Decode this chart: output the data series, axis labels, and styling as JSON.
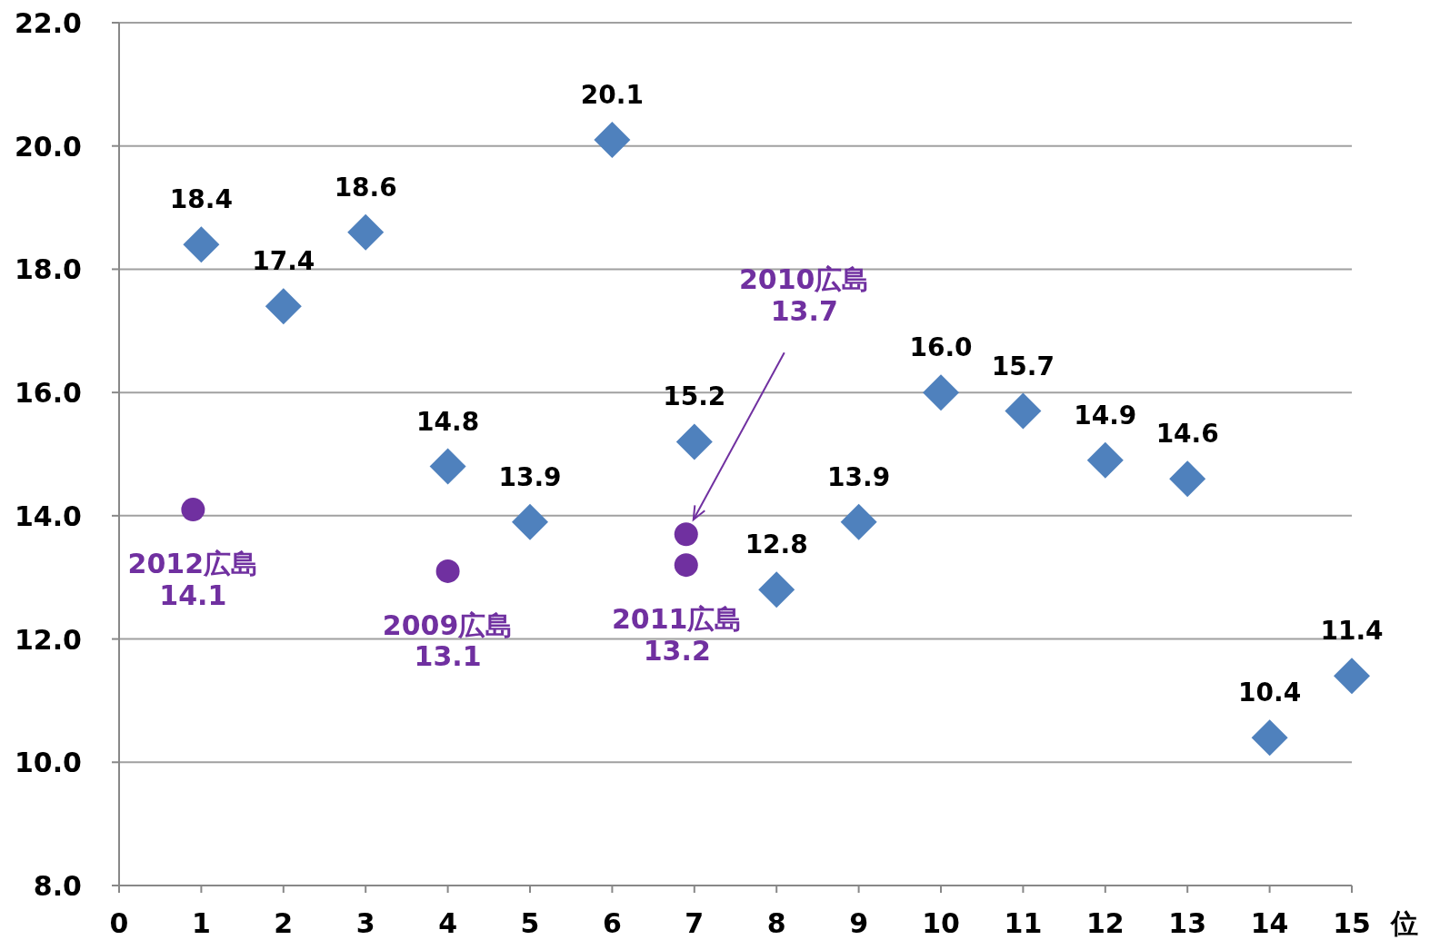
{
  "chart_data": {
    "type": "scatter",
    "xlabel": "位",
    "xlim": [
      0,
      15
    ],
    "xticks": [
      0,
      1,
      2,
      3,
      4,
      5,
      6,
      7,
      8,
      9,
      10,
      11,
      12,
      13,
      14,
      15
    ],
    "ylim": [
      8,
      22
    ],
    "yticks": [
      {
        "value": 8,
        "label": "8.0"
      },
      {
        "value": 10,
        "label": "10.0"
      },
      {
        "value": 12,
        "label": "12.0"
      },
      {
        "value": 14,
        "label": "14.0"
      },
      {
        "value": 16,
        "label": "16.0"
      },
      {
        "value": 18,
        "label": "18.0"
      },
      {
        "value": 20,
        "label": "20.0"
      },
      {
        "value": 22,
        "label": "22.0"
      }
    ],
    "grid": "y",
    "series": [
      {
        "color": "#4f81bd",
        "marker": "diamond",
        "x": [
          1,
          2,
          3,
          4,
          5,
          6,
          7,
          8,
          9,
          10,
          11,
          12,
          13,
          14,
          15
        ],
        "values": [
          18.4,
          17.4,
          18.6,
          14.8,
          13.9,
          20.1,
          15.2,
          12.8,
          13.9,
          16.0,
          15.7,
          14.9,
          14.6,
          10.4,
          11.4
        ],
        "value_labels": [
          "18.4",
          "17.4",
          "18.6",
          "14.8",
          "13.9",
          "20.1",
          "15.2",
          "12.8",
          "13.9",
          "16.0",
          "15.7",
          "14.9",
          "14.6",
          "10.4",
          "11.4"
        ]
      },
      {
        "color": "#7030a0",
        "marker": "circle",
        "x": [
          0.9,
          4,
          6.9,
          6.9
        ],
        "values": [
          14.1,
          13.1,
          13.7,
          13.2
        ],
        "value_labels": [
          "2012広島\n14.1",
          "2009広島\n13.1",
          "2010広島\n13.7",
          "2011広島\n13.2"
        ]
      }
    ]
  }
}
